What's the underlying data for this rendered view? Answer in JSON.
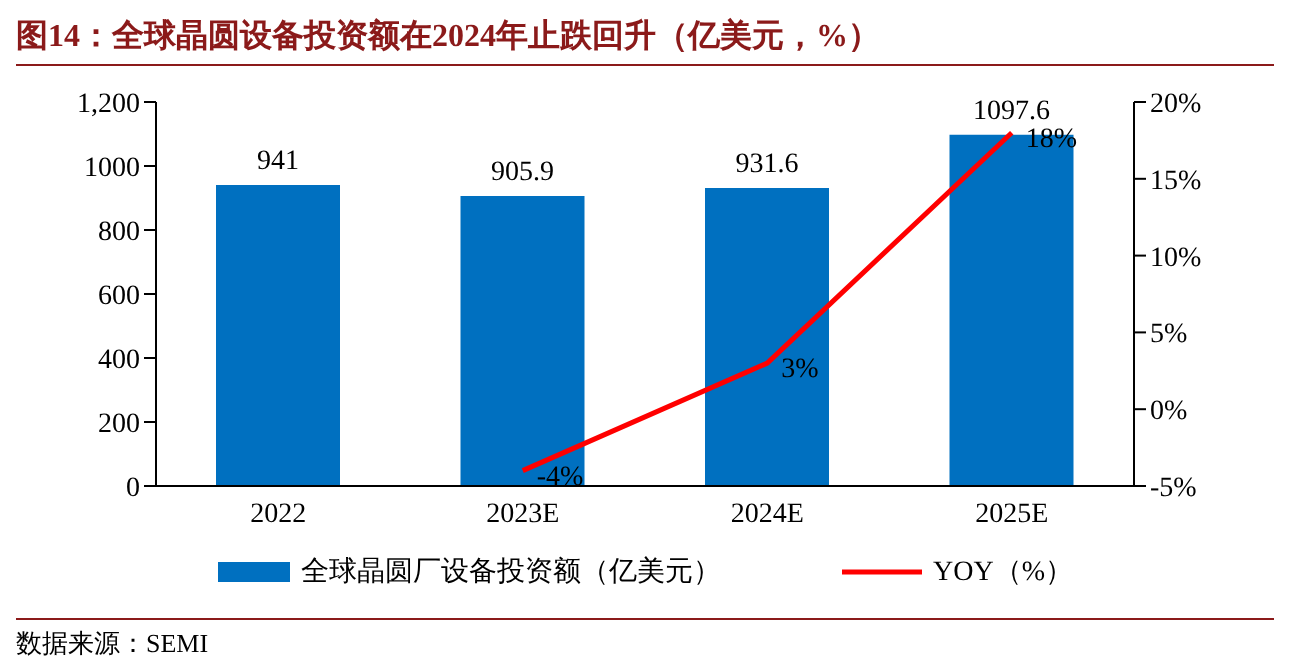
{
  "chart_data": {
    "type": "bar",
    "title": "图14：全球晶圆设备投资额在2024年止跌回升（亿美元，%）",
    "categories": [
      "2022",
      "2023E",
      "2024E",
      "2025E"
    ],
    "series": [
      {
        "name": "全球晶圆厂设备投资额（亿美元）",
        "color": "#0070c0",
        "values": [
          941,
          905.9,
          931.6,
          1097.6
        ],
        "value_labels": [
          "941",
          "905.9",
          "931.6",
          "1097.6"
        ]
      },
      {
        "name": "YOY（%）",
        "type": "line",
        "axis": "y2",
        "color": "#ff0000",
        "values": [
          null,
          -4,
          3,
          18
        ],
        "value_labels": [
          null,
          "-4%",
          "3%",
          "18%"
        ]
      }
    ],
    "ylim": [
      0,
      1200
    ],
    "yticks": [
      0,
      200,
      400,
      600,
      800,
      1000,
      {
        "value": 1200,
        "label": "1,200"
      }
    ],
    "y2lim": [
      -5,
      20
    ],
    "y2ticks": [
      {
        "value": -5,
        "label": "-5%"
      },
      {
        "value": 0,
        "label": "0%"
      },
      {
        "value": 5,
        "label": "5%"
      },
      {
        "value": 10,
        "label": "10%"
      },
      {
        "value": 15,
        "label": "15%"
      },
      {
        "value": 20,
        "label": "20%"
      }
    ],
    "grid": false,
    "legend": "bottom",
    "marker": "none",
    "annotations": [
      "数据来源：SEMI"
    ]
  }
}
